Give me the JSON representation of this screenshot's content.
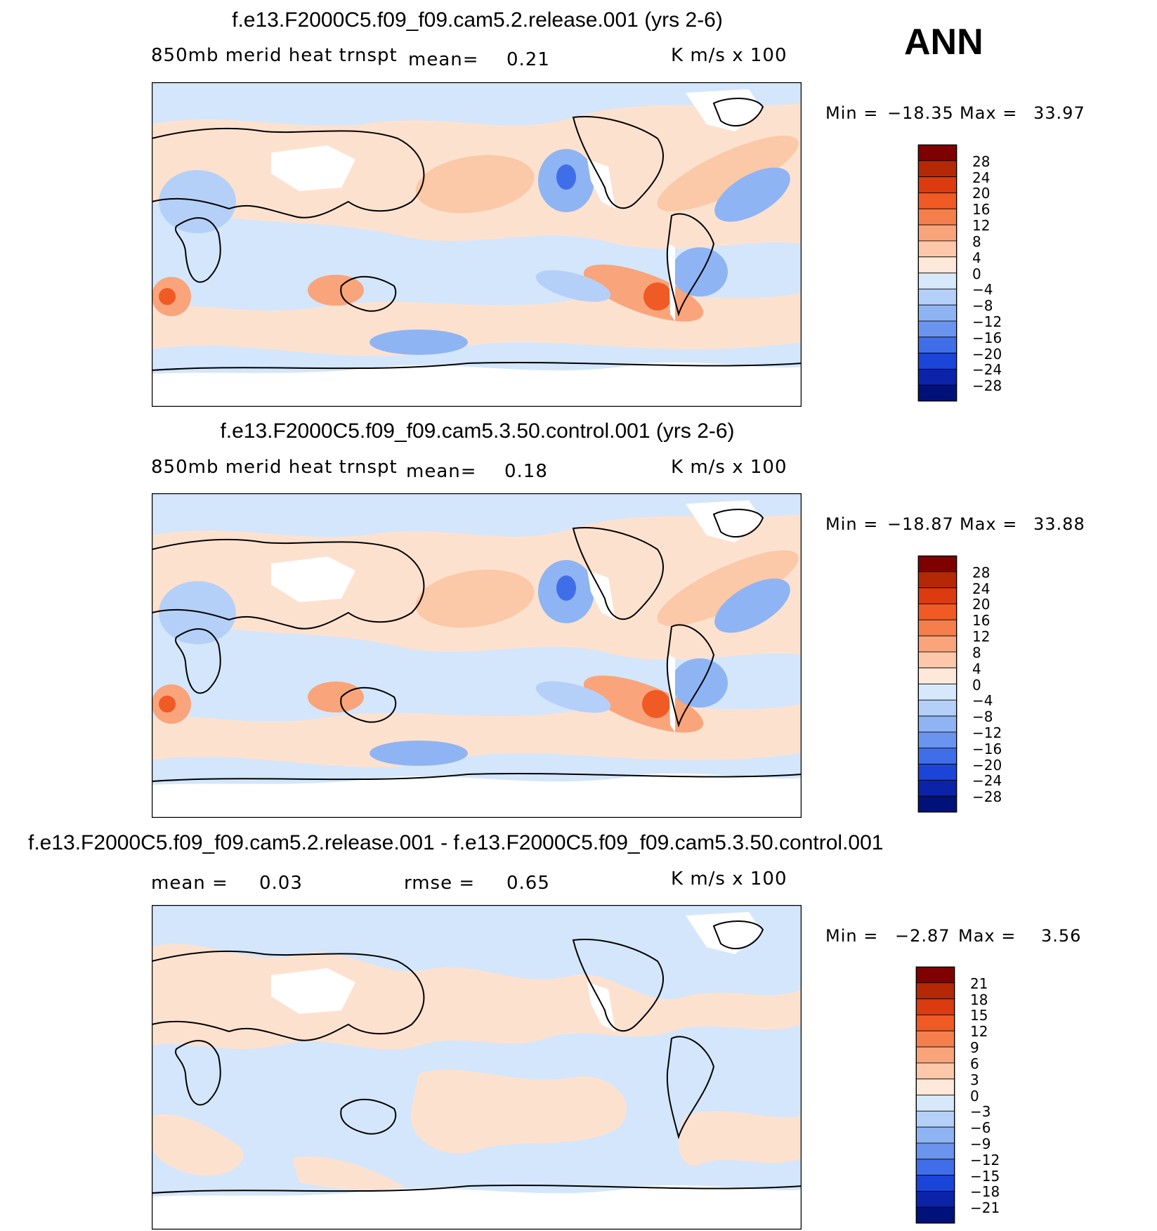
{
  "season": "ANN",
  "colors": {
    "land_coast": "#000000",
    "ocean_pos": "#fde1cf",
    "ocean_neg": "#d4e6fb",
    "missing": "#ffffff"
  },
  "panels": [
    {
      "id": "test",
      "title": "f.e13.F2000C5.f09_f09.cam5.2.release.001 (yrs 2-6)",
      "variable": "850mb merid heat trnspt",
      "mean_label": "mean=",
      "mean_value": "0.21",
      "rmse_label": "",
      "rmse_value": "",
      "units": "K m/s x 100",
      "min_label": "Min =",
      "min_value": "−18.35",
      "max_label": "Max =",
      "max_value": "33.97",
      "colorbar": {
        "labels": [
          "28",
          "24",
          "20",
          "16",
          "12",
          "8",
          "4",
          "0",
          "−4",
          "−8",
          "−12",
          "−16",
          "−20",
          "−24",
          "−28"
        ],
        "colors": [
          "#7f0000",
          "#b52806",
          "#dc3a0f",
          "#f05a24",
          "#f57f4c",
          "#f9a47b",
          "#fcc8a9",
          "#fde8d9",
          "#d8e8fb",
          "#b5d0f8",
          "#8fb4f3",
          "#6b94ee",
          "#3f6ee8",
          "#1a45d8",
          "#0b23a8",
          "#00127a"
        ]
      }
    },
    {
      "id": "control",
      "title": "f.e13.F2000C5.f09_f09.cam5.3.50.control.001 (yrs 2-6)",
      "variable": "850mb merid heat trnspt",
      "mean_label": "mean=",
      "mean_value": "0.18",
      "rmse_label": "",
      "rmse_value": "",
      "units": "K m/s x 100",
      "min_label": "Min =",
      "min_value": "−18.87",
      "max_label": "Max =",
      "max_value": "33.88",
      "colorbar": {
        "labels": [
          "28",
          "24",
          "20",
          "16",
          "12",
          "8",
          "4",
          "0",
          "−4",
          "−8",
          "−12",
          "−16",
          "−20",
          "−24",
          "−28"
        ],
        "colors": [
          "#7f0000",
          "#b52806",
          "#dc3a0f",
          "#f05a24",
          "#f57f4c",
          "#f9a47b",
          "#fcc8a9",
          "#fde8d9",
          "#d8e8fb",
          "#b5d0f8",
          "#8fb4f3",
          "#6b94ee",
          "#3f6ee8",
          "#1a45d8",
          "#0b23a8",
          "#00127a"
        ]
      }
    },
    {
      "id": "diff",
      "title": "f.e13.F2000C5.f09_f09.cam5.2.release.001 - f.e13.F2000C5.f09_f09.cam5.3.50.control.001",
      "variable": "",
      "mean_label": "mean =",
      "mean_value": "0.03",
      "rmse_label": "rmse =",
      "rmse_value": "0.65",
      "units": "K m/s x 100",
      "min_label": "Min =",
      "min_value": "−2.87",
      "max_label": "Max =",
      "max_value": "3.56",
      "colorbar": {
        "labels": [
          "21",
          "18",
          "15",
          "12",
          "9",
          "6",
          "3",
          "0",
          "−3",
          "−6",
          "−9",
          "−12",
          "−15",
          "−18",
          "−21"
        ],
        "colors": [
          "#7f0000",
          "#b52806",
          "#dc3a0f",
          "#f05a24",
          "#f57f4c",
          "#f9a47b",
          "#fcc8a9",
          "#fde8d9",
          "#d8e8fb",
          "#b5d0f8",
          "#8fb4f3",
          "#6b94ee",
          "#3f6ee8",
          "#1a45d8",
          "#0b23a8",
          "#00127a"
        ]
      }
    }
  ]
}
